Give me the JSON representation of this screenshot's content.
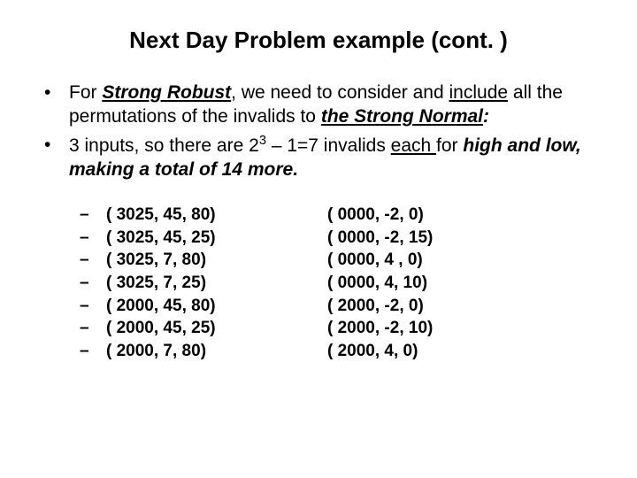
{
  "title": "Next Day Problem example (cont. )",
  "bullet1": {
    "lead": "For ",
    "strong_robust": "Strong Robust",
    "mid1": ", we need to consider and ",
    "include": "include",
    "mid2": " all the permutations of the invalids to ",
    "strong_normal": "the Strong Normal",
    "tail": ":"
  },
  "bullet2": {
    "lead": "3 inputs,  so there are 2",
    "exp": "3",
    "mid1": " – 1=7 invalids ",
    "each": "each ",
    "mid2": "for ",
    "tail_italic": "high and low, making a total of 14 more."
  },
  "left": [
    "( 3025, 45, 80)",
    "( 3025, 45, 25)",
    "( 3025,  7,  80)",
    "( 3025,  7,  25)",
    "( 2000, 45, 80)",
    "( 2000, 45, 25)",
    "( 2000, 7,   80)"
  ],
  "right": [
    "( 0000, -2, 0)",
    "( 0000, -2, 15)",
    "( 0000, 4 ,  0)",
    "( 0000, 4, 10)",
    "( 2000, -2, 0)",
    "( 2000, -2, 10)",
    "( 2000, 4, 0)"
  ]
}
